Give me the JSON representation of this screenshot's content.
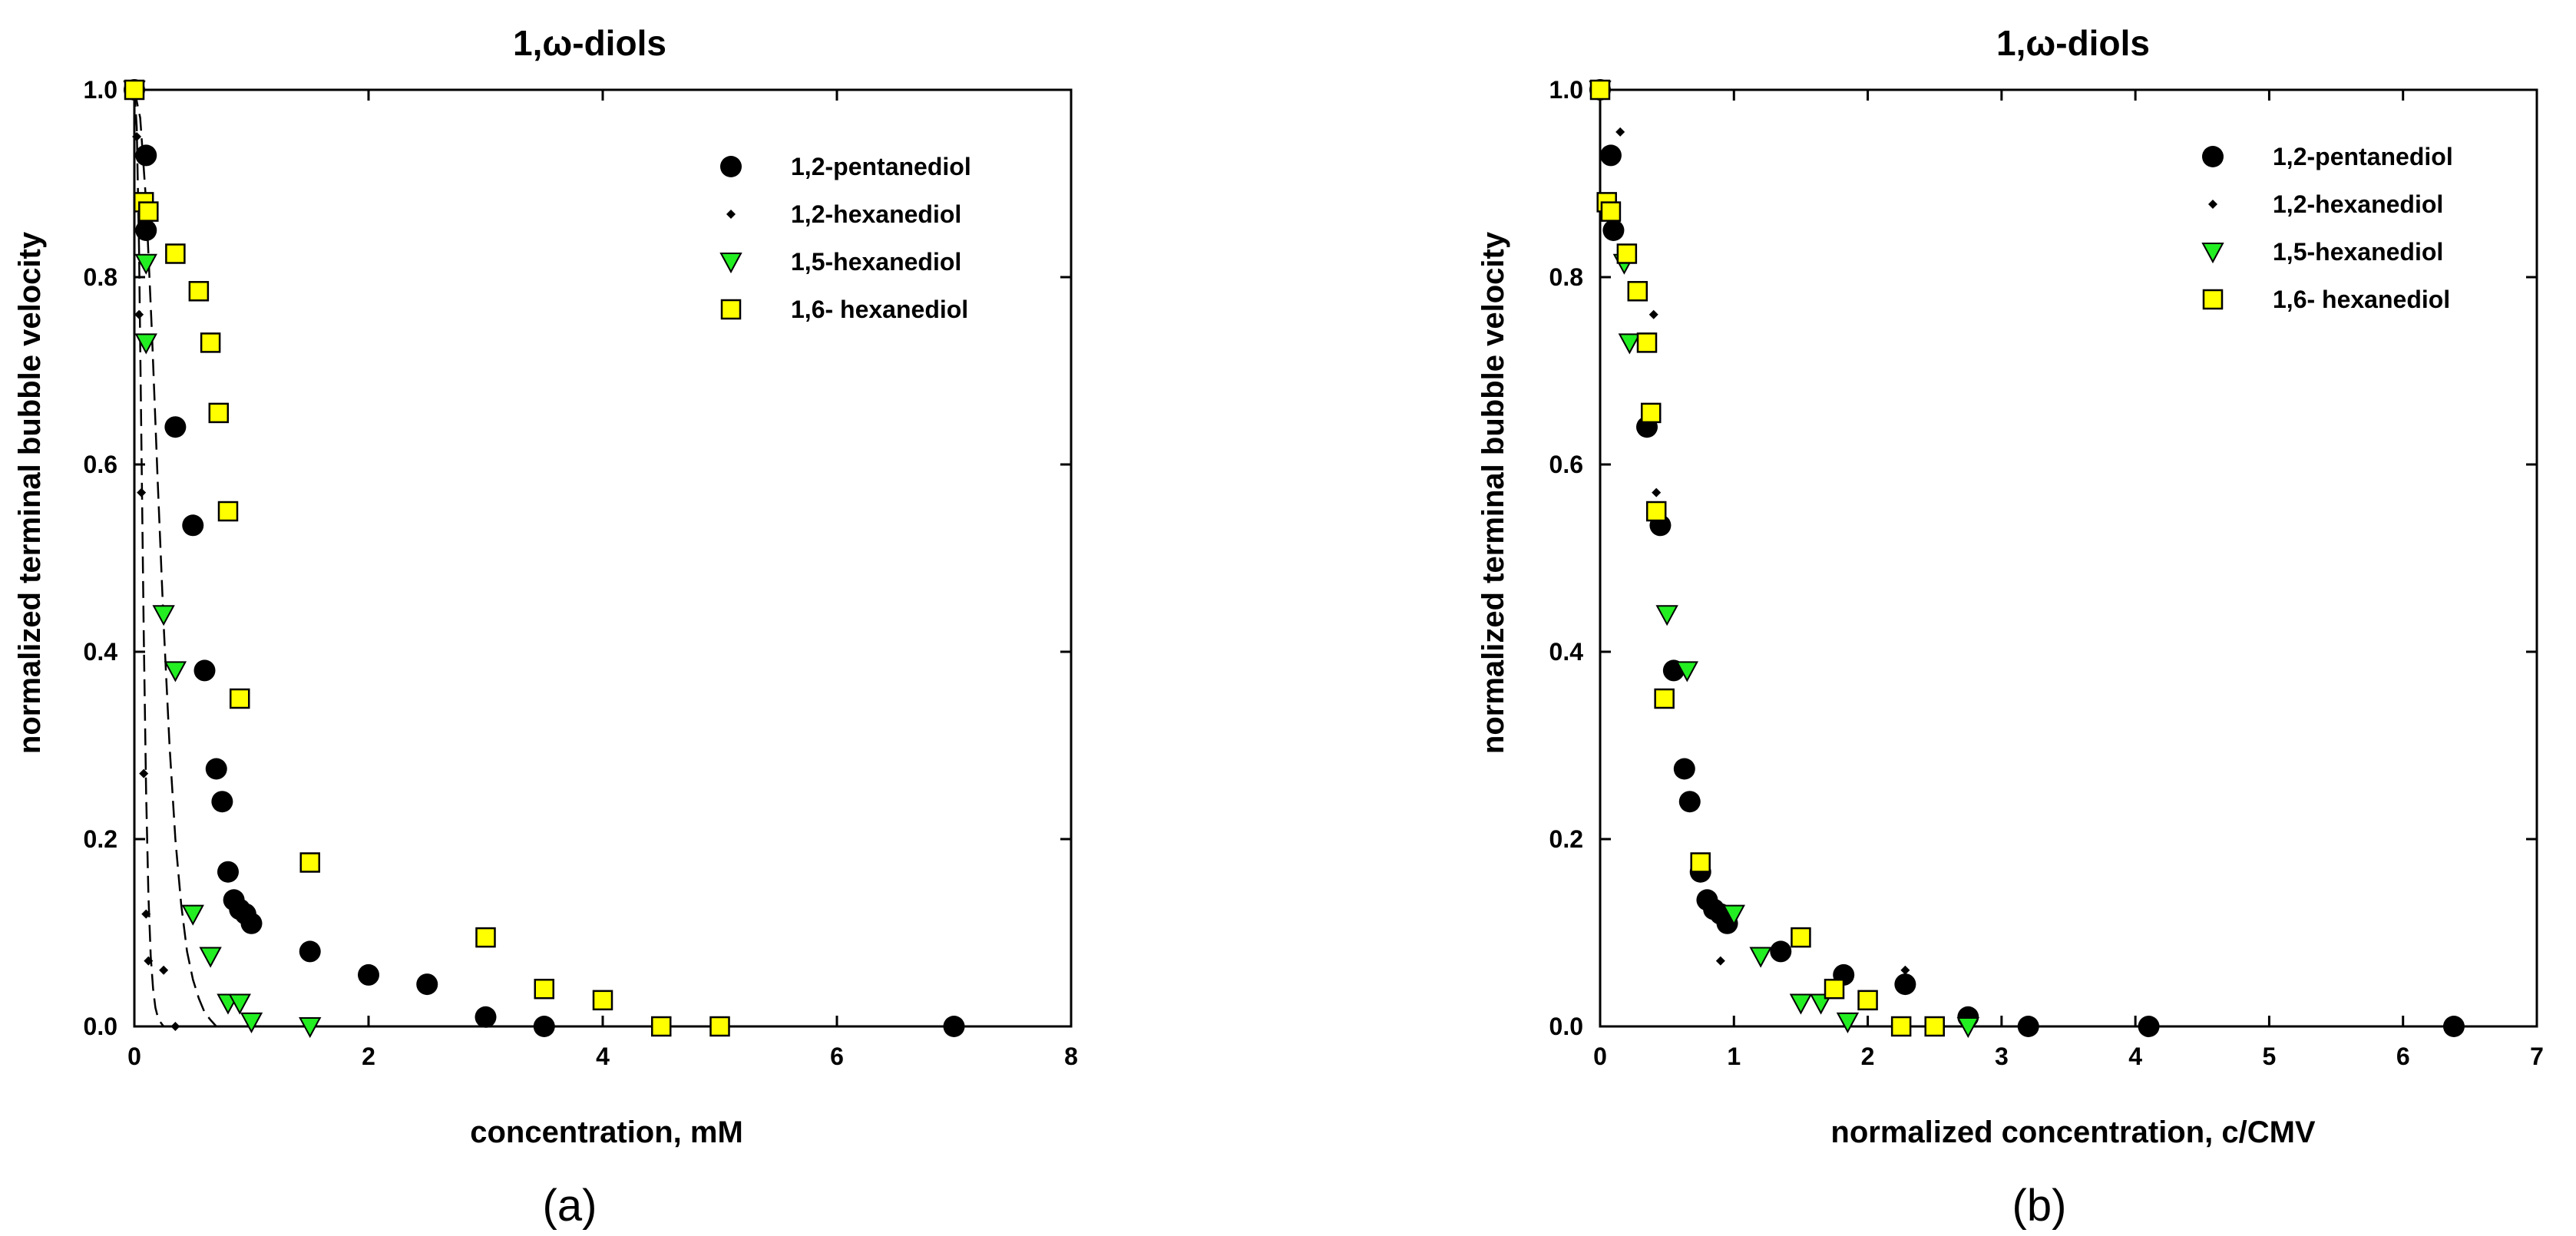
{
  "colors": {
    "circle": "#000000",
    "diamond": "#000000",
    "triangle": "#22ee22",
    "square": "#ffff00",
    "stroke": "#000000"
  },
  "chart_data": [
    {
      "id": "a",
      "type": "scatter",
      "title": "1,ω-diols",
      "xlabel": "concentration, mM",
      "ylabel": "normalized terminal bubble velocity",
      "panel_label": "(a)",
      "xlim": [
        0,
        8
      ],
      "ylim": [
        0,
        1.0
      ],
      "xticks": [
        "0",
        "2",
        "4",
        "6",
        "8"
      ],
      "yticks": [
        "0.0",
        "0.2",
        "0.4",
        "0.6",
        "0.8",
        "1.0"
      ],
      "legend_position": "top-right",
      "series": [
        {
          "name": "1,2-pentanediol",
          "marker": "circle",
          "x": [
            0,
            0.1,
            0.1,
            0.35,
            0.5,
            0.6,
            0.7,
            0.75,
            0.8,
            0.85,
            0.9,
            0.95,
            1.0,
            1.5,
            2.0,
            2.5,
            3.0,
            3.5,
            7.0
          ],
          "y": [
            1.0,
            0.93,
            0.85,
            0.64,
            0.535,
            0.38,
            0.275,
            0.24,
            0.165,
            0.135,
            0.125,
            0.12,
            0.11,
            0.08,
            0.055,
            0.045,
            0.01,
            0.0,
            0.0
          ]
        },
        {
          "name": "1,2-hexanediol",
          "marker": "diamond",
          "x": [
            0,
            0.02,
            0.04,
            0.06,
            0.08,
            0.1,
            0.12,
            0.25,
            0.35
          ],
          "y": [
            1.0,
            0.95,
            0.76,
            0.57,
            0.27,
            0.12,
            0.07,
            0.06,
            0.0
          ]
        },
        {
          "name": "1,5-hexanediol",
          "marker": "triangle",
          "x": [
            0,
            0.1,
            0.1,
            0.25,
            0.35,
            0.5,
            0.65,
            0.8,
            0.9,
            1.0,
            1.5
          ],
          "y": [
            1.0,
            0.815,
            0.73,
            0.44,
            0.38,
            0.12,
            0.075,
            0.025,
            0.025,
            0.005,
            0.0
          ]
        },
        {
          "name": "1,6- hexanediol",
          "marker": "square",
          "x": [
            0,
            0.08,
            0.12,
            0.35,
            0.55,
            0.65,
            0.72,
            0.8,
            0.9,
            1.5,
            3.0,
            3.5,
            4.0,
            4.5,
            5.0
          ],
          "y": [
            1.0,
            0.88,
            0.87,
            0.825,
            0.785,
            0.73,
            0.655,
            0.55,
            0.35,
            0.175,
            0.095,
            0.04,
            0.028,
            0.0,
            0.0
          ]
        }
      ],
      "fit_curves": [
        {
          "name": "1,2-hexanediol fit",
          "style": "dash",
          "x": [
            0,
            0.02,
            0.04,
            0.06,
            0.08,
            0.1,
            0.12,
            0.14,
            0.16,
            0.18,
            0.2,
            0.22,
            0.25
          ],
          "y": [
            1.0,
            0.96,
            0.83,
            0.62,
            0.42,
            0.25,
            0.14,
            0.075,
            0.04,
            0.02,
            0.01,
            0.005,
            0.0
          ]
        },
        {
          "name": "1,5-hexanediol fit",
          "style": "dash",
          "x": [
            0,
            0.05,
            0.1,
            0.15,
            0.2,
            0.25,
            0.3,
            0.35,
            0.4,
            0.45,
            0.5,
            0.55,
            0.6,
            0.65,
            0.7
          ],
          "y": [
            1.0,
            0.97,
            0.88,
            0.74,
            0.58,
            0.43,
            0.3,
            0.2,
            0.13,
            0.08,
            0.05,
            0.03,
            0.015,
            0.007,
            0.0
          ]
        }
      ]
    },
    {
      "id": "b",
      "type": "scatter",
      "title": "1,ω-diols",
      "xlabel": "normalized concentration, c/CMV",
      "ylabel": "normalized terminal bubble velocity",
      "panel_label": "(b)",
      "xlim": [
        0,
        7
      ],
      "ylim": [
        0,
        1.0
      ],
      "xticks": [
        "0",
        "1",
        "2",
        "3",
        "4",
        "5",
        "6",
        "7"
      ],
      "yticks": [
        "0.0",
        "0.2",
        "0.4",
        "0.6",
        "0.8",
        "1.0"
      ],
      "legend_position": "top-right",
      "series": [
        {
          "name": "1,2-pentanediol",
          "marker": "circle",
          "x": [
            0,
            0.08,
            0.1,
            0.35,
            0.45,
            0.55,
            0.63,
            0.67,
            0.75,
            0.8,
            0.85,
            0.9,
            0.95,
            1.35,
            1.82,
            2.28,
            2.75,
            3.2,
            4.1,
            6.38
          ],
          "y": [
            1.0,
            0.93,
            0.85,
            0.64,
            0.535,
            0.38,
            0.275,
            0.24,
            0.165,
            0.135,
            0.125,
            0.12,
            0.11,
            0.08,
            0.055,
            0.045,
            0.01,
            0.0,
            0.0,
            0.0
          ]
        },
        {
          "name": "1,2-hexanediol",
          "marker": "diamond",
          "x": [
            0,
            0.15,
            0.4,
            0.42,
            0.9,
            2.28
          ],
          "y": [
            1.0,
            0.955,
            0.76,
            0.57,
            0.07,
            0.06
          ]
        },
        {
          "name": "1,5-hexanediol",
          "marker": "triangle",
          "x": [
            0,
            0.18,
            0.22,
            0.5,
            0.65,
            1.0,
            1.2,
            1.5,
            1.65,
            1.85,
            2.75
          ],
          "y": [
            1.0,
            0.815,
            0.73,
            0.44,
            0.38,
            0.12,
            0.075,
            0.025,
            0.025,
            0.005,
            0.0
          ]
        },
        {
          "name": "1,6- hexanediol",
          "marker": "square",
          "x": [
            0,
            0.05,
            0.08,
            0.2,
            0.28,
            0.35,
            0.38,
            0.42,
            0.48,
            0.75,
            1.5,
            1.75,
            2.0,
            2.25,
            2.5
          ],
          "y": [
            1.0,
            0.88,
            0.87,
            0.825,
            0.785,
            0.73,
            0.655,
            0.55,
            0.35,
            0.175,
            0.095,
            0.04,
            0.028,
            0.0,
            0.0
          ]
        }
      ]
    }
  ]
}
